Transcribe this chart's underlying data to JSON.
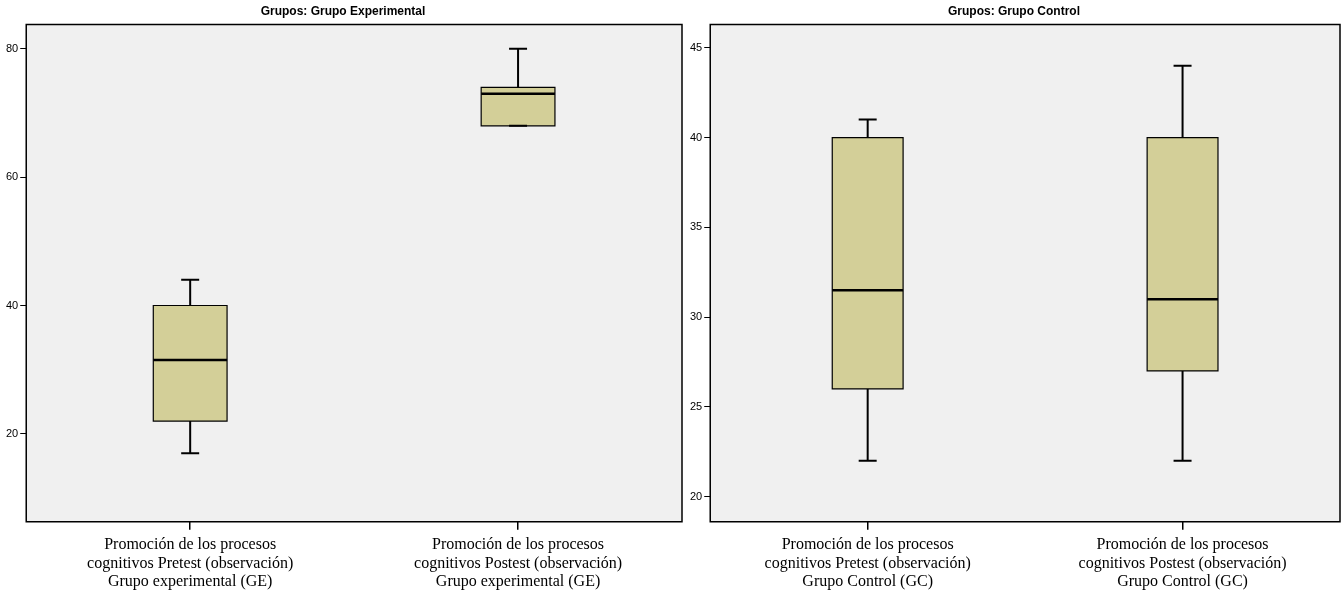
{
  "chart_data": [
    {
      "type": "box",
      "title": "Grupos: Grupo Experimental",
      "color": "#d3cf98",
      "categories": [
        "Promoción de los procesos cognitivos Pretest (observación) Grupo experimental (GE)",
        "Promoción de los procesos cognitivos Postest (observación) Grupo experimental (GE)"
      ],
      "boxes": [
        {
          "low": 17,
          "q1": 22,
          "median": 31.5,
          "q3": 40,
          "high": 44
        },
        {
          "low": 68,
          "q1": 68,
          "median": 73,
          "q3": 74,
          "high": 80
        }
      ],
      "ylim": [
        6.3,
        83.8
      ],
      "yticks": [
        20,
        40,
        60,
        80
      ]
    },
    {
      "type": "box",
      "title": "Grupos: Grupo Control",
      "color": "#d3cf98",
      "categories": [
        "Promoción de los procesos cognitivos Pretest (observación) Grupo Control (GC)",
        "Promoción de los procesos cognitivos Postest (observación) Grupo Control (GC)"
      ],
      "boxes": [
        {
          "low": 22,
          "q1": 26,
          "median": 31.5,
          "q3": 40,
          "high": 41
        },
        {
          "low": 22,
          "q1": 27,
          "median": 31,
          "q3": 40,
          "high": 44
        }
      ],
      "ylim": [
        18.6,
        46.3
      ],
      "yticks": [
        20,
        25,
        30,
        35,
        40,
        45
      ]
    }
  ]
}
